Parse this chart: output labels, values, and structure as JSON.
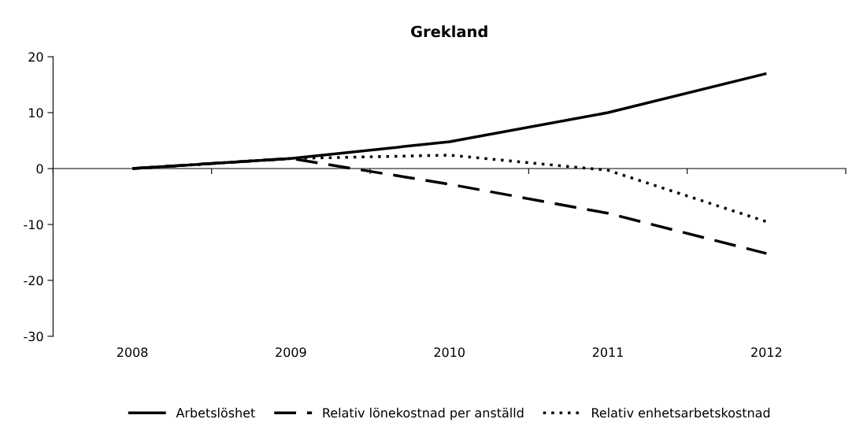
{
  "chart_data": {
    "type": "line",
    "title": "Grekland",
    "categories": [
      "2008",
      "2009",
      "2010",
      "2011",
      "2012"
    ],
    "series": [
      {
        "name": "Arbetslöshet",
        "color": "#000000",
        "line_style": "solid",
        "values": [
          0,
          1.8,
          4.8,
          10,
          17
        ]
      },
      {
        "name": "Relativ lönekostnad per anställd",
        "color": "#000000",
        "line_style": "dashed",
        "values": [
          0,
          1.8,
          -2.8,
          -8,
          -15.2
        ]
      },
      {
        "name": "Relativ enhetsarbetskostnad",
        "color": "#000000",
        "line_style": "dotted",
        "values": [
          0,
          1.8,
          2.4,
          -0.3,
          -9.5
        ]
      }
    ],
    "ylim": [
      -30,
      20
    ],
    "yticks": [
      -30,
      -20,
      -10,
      0,
      10,
      20
    ],
    "legend": "bottom",
    "marker": "none"
  }
}
